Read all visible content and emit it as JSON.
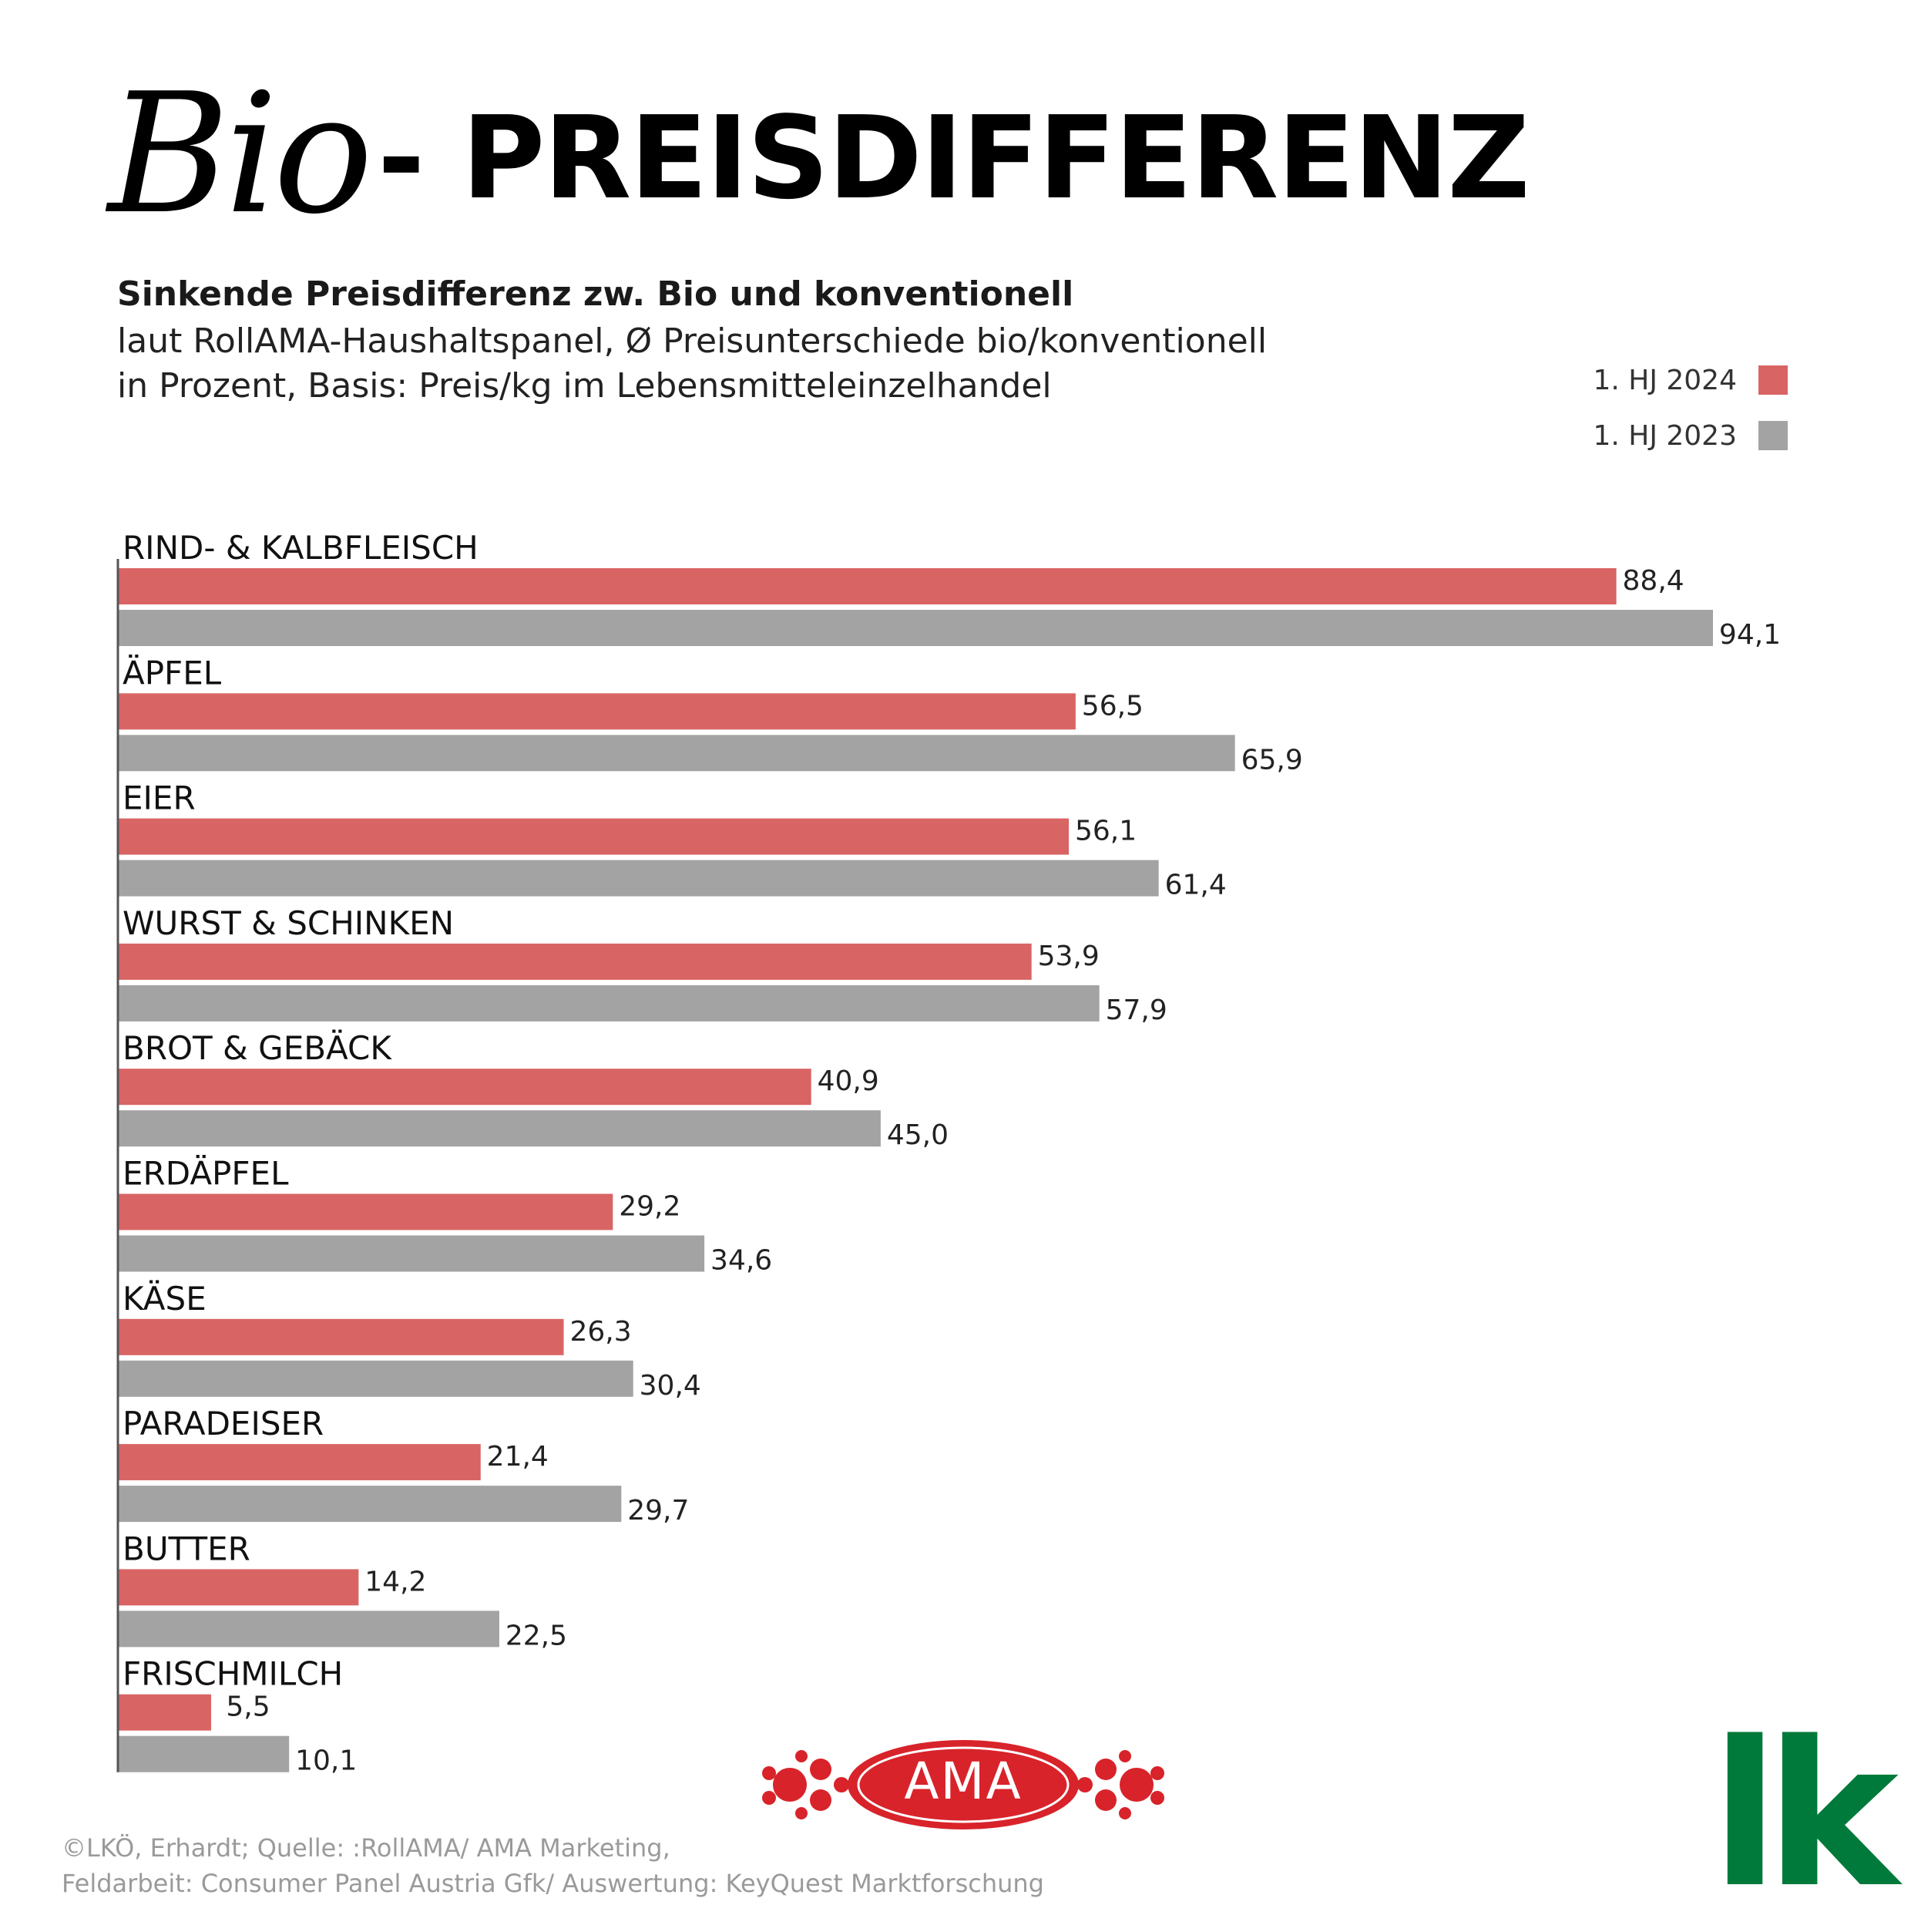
{
  "header": {
    "title_script": "Bio",
    "title_main": "- PREISDIFFERENZ",
    "subtitle_bold": "Sinkende Preisdifferenz zw. Bio und konventionell",
    "subtitle_line2": "laut RollAMA-Haushaltspanel, Ø Preisunterschiede bio/konventionell",
    "subtitle_line3": "in Prozent, Basis: Preis/kg im Lebensmitteleinzelhandel"
  },
  "legend": {
    "series_2024": "1. HJ 2024",
    "series_2023": "1. HJ 2023"
  },
  "colors": {
    "series_2024": "#d96464",
    "series_2023": "#a3a3a3",
    "axis": "#555555",
    "ama_red": "#d8232a",
    "lk_green": "#007a3a"
  },
  "chart_data": {
    "type": "bar",
    "orientation": "horizontal",
    "title": "Sinkende Preisdifferenz zw. Bio und konventionell",
    "xlabel": "",
    "ylabel": "",
    "xlim": [
      0,
      100
    ],
    "grid": false,
    "legend_position": "top-right",
    "categories": [
      "RIND- & KALBFLEISCH",
      "ÄPFEL",
      "EIER",
      "WURST & SCHINKEN",
      "BROT & GEBÄCK",
      "ERDÄPFEL",
      "KÄSE",
      "PARADEISER",
      "BUTTER",
      "FRISCHMILCH"
    ],
    "series": [
      {
        "name": "1. HJ 2024",
        "values": [
          88.4,
          56.5,
          56.1,
          53.9,
          40.9,
          29.2,
          26.3,
          21.4,
          14.2,
          5.5
        ],
        "labels": [
          "88,4",
          "56,5",
          "56,1",
          "53,9",
          "40,9",
          "29,2",
          "26,3",
          "21,4",
          "14,2",
          "5,5"
        ]
      },
      {
        "name": "1. HJ 2023",
        "values": [
          94.1,
          65.9,
          61.4,
          57.9,
          45.0,
          34.6,
          30.4,
          29.7,
          22.5,
          10.1
        ],
        "labels": [
          "94,1",
          "65,9",
          "61,4",
          "57,9",
          "45,0",
          "34,6",
          "30,4",
          "29,7",
          "22,5",
          "10,1"
        ]
      }
    ]
  },
  "logos": {
    "ama": "AMA",
    "lk": "lk"
  },
  "footer": {
    "credit_line1": "©LKÖ, Erhardt;  Quelle: :RollAMA/ AMA Marketing,",
    "credit_line2": "Feldarbeit: Consumer Panel Austria Gfk/ Auswertung: KeyQuest Marktforschung"
  }
}
